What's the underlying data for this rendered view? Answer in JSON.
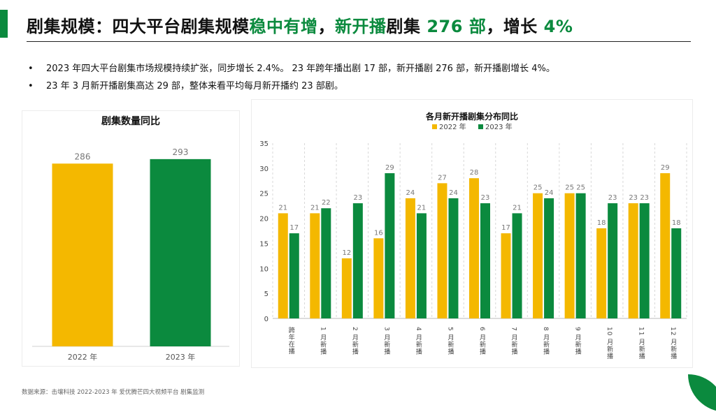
{
  "title": {
    "parts": [
      {
        "text": "剧集规模：四大平台剧集规模",
        "style": "dark"
      },
      {
        "text": "稳中有增",
        "style": "green"
      },
      {
        "text": "，",
        "style": "dark"
      },
      {
        "text": "新开播",
        "style": "green"
      },
      {
        "text": "剧集 ",
        "style": "dark"
      },
      {
        "text": "276 部",
        "style": "green"
      },
      {
        "text": "，",
        "style": "dark"
      },
      {
        "text": "增长 ",
        "style": "dark"
      },
      {
        "text": "4%",
        "style": "green"
      }
    ]
  },
  "bullets": [
    "2023 年四大平台剧集市场规模持续扩张，同步增长 2.4%。 23 年跨年播出剧 17 部，新开播剧 276 部，新开播剧增长 4%。",
    "23 年 3 月新开播剧集高达 29 部，整体来看平均每月新开播约 23 部剧。"
  ],
  "footer": "数据来源：击壤科技 2022-2023 年 爱优腾芒四大视频平台 剧集监测",
  "colors": {
    "y2022": "#f4b800",
    "y2023": "#0b8a3e",
    "accent": "#0b8a3e"
  },
  "chart_data": [
    {
      "type": "bar",
      "title": "剧集数量同比",
      "categories": [
        "2022 年",
        "2023 年"
      ],
      "values": [
        286,
        293
      ],
      "ylim": [
        0,
        330
      ],
      "xlabel": "",
      "ylabel": ""
    },
    {
      "type": "bar",
      "title": "各月新开播剧集分布同比",
      "categories": [
        "跨年在播",
        "1 月新播",
        "2 月新播",
        "3 月新播",
        "4 月新播",
        "5 月新播",
        "6 月新播",
        "7 月新播",
        "8 月新播",
        "9 月新播",
        "10 月新播",
        "11 月新播",
        "12 月新播"
      ],
      "series": [
        {
          "name": "2022 年",
          "values": [
            21,
            21,
            12,
            16,
            24,
            27,
            28,
            17,
            25,
            25,
            18,
            23,
            29
          ]
        },
        {
          "name": "2023 年",
          "values": [
            17,
            22,
            23,
            29,
            21,
            24,
            23,
            21,
            24,
            25,
            23,
            23,
            18
          ]
        }
      ],
      "ylim": [
        0,
        35
      ],
      "yticks": [
        0,
        5,
        10,
        15,
        20,
        25,
        30,
        35
      ],
      "legend": "top-center",
      "xlabel": "",
      "ylabel": ""
    }
  ]
}
